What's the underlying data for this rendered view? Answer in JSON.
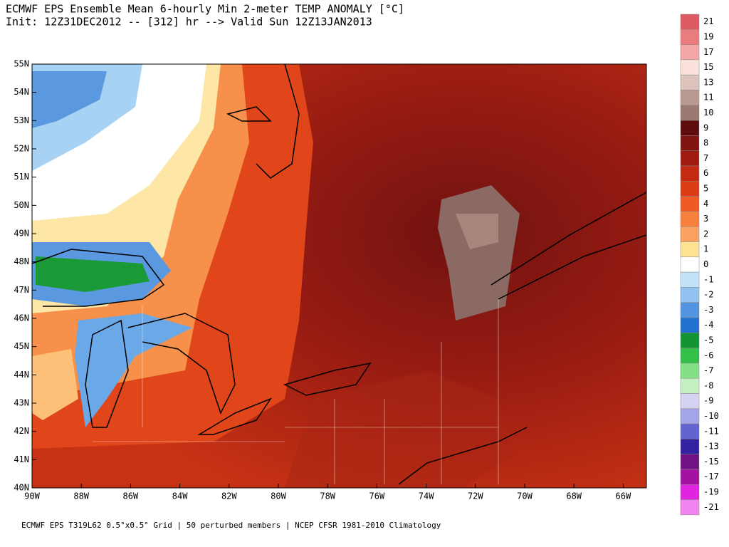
{
  "header": {
    "title": "ECMWF EPS Ensemble Mean 6-hourly Min 2-meter TEMP ANOMALY [°C]",
    "subtitle": "Init: 12Z31DEC2012 -- [312] hr --> Valid Sun 12Z13JAN2013"
  },
  "map": {
    "lat_labels": [
      "55N",
      "54N",
      "53N",
      "52N",
      "51N",
      "50N",
      "49N",
      "48N",
      "47N",
      "46N",
      "45N",
      "44N",
      "43N",
      "42N",
      "41N",
      "40N"
    ],
    "lon_labels": [
      "90W",
      "88W",
      "86W",
      "84W",
      "82W",
      "80W",
      "78W",
      "76W",
      "74W",
      "72W",
      "70W",
      "68W",
      "66W"
    ]
  },
  "legend": {
    "items": [
      {
        "label": "21",
        "color": "#e05a64"
      },
      {
        "label": "19",
        "color": "#ea7c80"
      },
      {
        "label": "17",
        "color": "#f4a6a6"
      },
      {
        "label": "15",
        "color": "#fbe2dc"
      },
      {
        "label": "13",
        "color": "#dcc4bc"
      },
      {
        "label": "11",
        "color": "#b89a92"
      },
      {
        "label": "10",
        "color": "#9a7a72"
      },
      {
        "label": "9",
        "color": "#5e0c0c"
      },
      {
        "label": "8",
        "color": "#801410"
      },
      {
        "label": "7",
        "color": "#a01c12"
      },
      {
        "label": "6",
        "color": "#c22a12"
      },
      {
        "label": "5",
        "color": "#dc3c14"
      },
      {
        "label": "4",
        "color": "#f05a24"
      },
      {
        "label": "3",
        "color": "#f8803e"
      },
      {
        "label": "2",
        "color": "#fca260"
      },
      {
        "label": "1",
        "color": "#fde294"
      },
      {
        "label": "0",
        "color": "#ffffff"
      },
      {
        "label": "-1",
        "color": "#c4e2f8"
      },
      {
        "label": "-2",
        "color": "#92c2f0"
      },
      {
        "label": "-3",
        "color": "#5294e0"
      },
      {
        "label": "-4",
        "color": "#2272d0"
      },
      {
        "label": "-5",
        "color": "#129434"
      },
      {
        "label": "-6",
        "color": "#34c048"
      },
      {
        "label": "-7",
        "color": "#84e084"
      },
      {
        "label": "-8",
        "color": "#c4f0c4"
      },
      {
        "label": "-9",
        "color": "#d4d4f2"
      },
      {
        "label": "-10",
        "color": "#a4a4e8"
      },
      {
        "label": "-11",
        "color": "#6464d0"
      },
      {
        "label": "-13",
        "color": "#3222a2"
      },
      {
        "label": "-15",
        "color": "#701282"
      },
      {
        "label": "-17",
        "color": "#a412a4"
      },
      {
        "label": "-19",
        "color": "#e024e0"
      },
      {
        "label": "-21",
        "color": "#f284f0"
      }
    ]
  },
  "footer": {
    "text": "ECMWF EPS T319L62 0.5°x0.5° Grid | 50 perturbed members | NCEP CFSR 1981-2010 Climatology"
  }
}
